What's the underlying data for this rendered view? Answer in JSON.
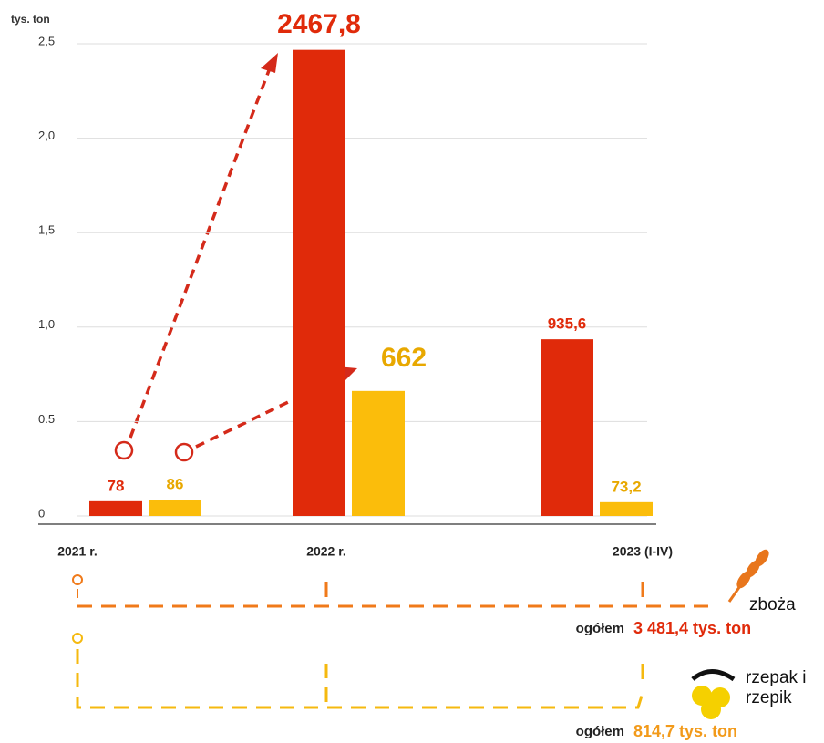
{
  "chart_data": {
    "type": "bar",
    "y_label": "tys. ton",
    "categories": [
      "2021 r.",
      "2022 r.",
      "2023 (I-IV)"
    ],
    "series": [
      {
        "name": "zboża",
        "color": "#e02a0a",
        "values": [
          78,
          2467.8,
          935.6
        ],
        "value_labels": [
          "78",
          "2467,8",
          "935,6"
        ],
        "total_label": "ogółem",
        "total": "3 481,4 tys. ton"
      },
      {
        "name": "rzepak i rzepik",
        "color": "#fbbd0b",
        "values": [
          86,
          662,
          73.2
        ],
        "value_labels": [
          "86",
          "662",
          "73,2"
        ],
        "total_label": "ogółem",
        "total": "814,7 tys. ton"
      }
    ],
    "ylim": [
      0,
      2500
    ],
    "yticks": [
      0,
      {
        "value": 500,
        "label": "0.5"
      },
      {
        "value": 1000,
        "label": "1,0"
      },
      {
        "value": 1500,
        "label": "1,5"
      },
      {
        "value": 2000,
        "label": "2,0"
      },
      {
        "value": 2500,
        "label": "2,5"
      }
    ],
    "grid": true
  }
}
